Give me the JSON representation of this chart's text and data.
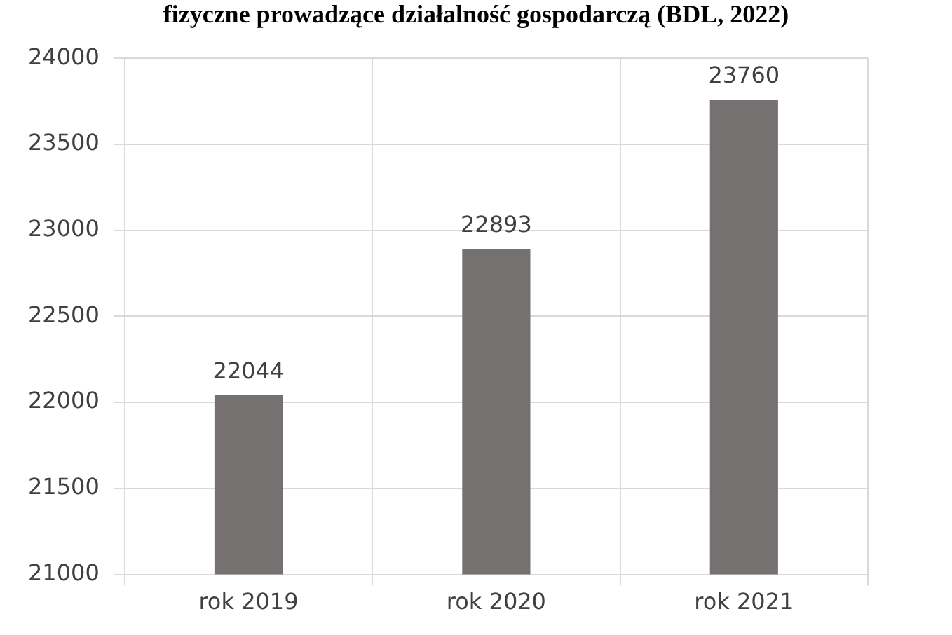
{
  "chart_data": {
    "type": "bar",
    "title": "fizyczne prowadzące działalność gospodarczą (BDL, 2022)",
    "categories": [
      "rok 2019",
      "rok 2020",
      "rok 2021"
    ],
    "values": [
      22044,
      22893,
      23760
    ],
    "color": "#767171",
    "ylim": [
      21000,
      24000
    ],
    "yticks": [
      21000,
      21500,
      22000,
      22500,
      23000,
      23500,
      24000
    ],
    "grid": true,
    "data_labels": true,
    "legend": false
  }
}
